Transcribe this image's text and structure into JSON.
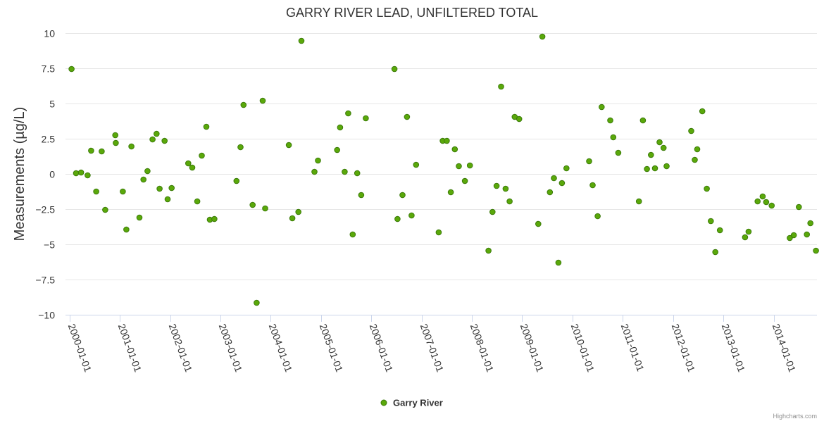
{
  "chart_data": {
    "type": "scatter",
    "title": "GARRY RIVER LEAD, UNFILTERED TOTAL",
    "xlabel": "",
    "ylabel": "Measurements (µg/L)",
    "ylim": [
      -10,
      10
    ],
    "yticks": [
      {
        "value": 10,
        "label": "10"
      },
      {
        "value": 7.5,
        "label": "7.5"
      },
      {
        "value": 5,
        "label": "5"
      },
      {
        "value": 2.5,
        "label": "2.5"
      },
      {
        "value": 0,
        "label": "0"
      },
      {
        "value": -2.5,
        "label": "−2.5"
      },
      {
        "value": -5,
        "label": "−5"
      },
      {
        "value": -7.5,
        "label": "−7.5"
      },
      {
        "value": -10,
        "label": "−10"
      }
    ],
    "xlim": [
      -0.08,
      14.86
    ],
    "xticks": [
      {
        "value": 0,
        "label": "2000-01-01"
      },
      {
        "value": 1,
        "label": "2001-01-01"
      },
      {
        "value": 2,
        "label": "2002-01-01"
      },
      {
        "value": 3,
        "label": "2003-01-01"
      },
      {
        "value": 4,
        "label": "2004-01-01"
      },
      {
        "value": 5,
        "label": "2005-01-01"
      },
      {
        "value": 6,
        "label": "2006-01-01"
      },
      {
        "value": 7,
        "label": "2007-01-01"
      },
      {
        "value": 8,
        "label": "2008-01-01"
      },
      {
        "value": 9,
        "label": "2009-01-01"
      },
      {
        "value": 10,
        "label": "2010-01-01"
      },
      {
        "value": 11,
        "label": "2011-01-01"
      },
      {
        "value": 12,
        "label": "2012-01-01"
      },
      {
        "value": 13,
        "label": "2013-01-01"
      },
      {
        "value": 14,
        "label": "2014-01-01"
      }
    ],
    "x_units": "years since 2000-01-01",
    "legend": {
      "position": "bottom-center"
    },
    "credits": "Highcharts.com",
    "colors": {
      "marker_fill": "#5aa80a",
      "marker_stroke": "#3b7a0a",
      "grid": "#e6e6e6",
      "axis": "#ccd6eb"
    },
    "series": [
      {
        "name": "Garry River",
        "x": [
          0.04,
          0.13,
          0.23,
          0.36,
          0.43,
          0.53,
          0.64,
          0.71,
          0.91,
          0.92,
          1.06,
          1.13,
          1.23,
          1.39,
          1.47,
          1.55,
          1.65,
          1.73,
          1.79,
          1.89,
          1.95,
          2.03,
          2.36,
          2.44,
          2.54,
          2.63,
          2.72,
          2.79,
          2.88,
          3.32,
          3.4,
          3.46,
          3.64,
          3.72,
          3.84,
          3.89,
          4.36,
          4.43,
          4.55,
          4.61,
          4.87,
          4.94,
          5.32,
          5.38,
          5.47,
          5.54,
          5.63,
          5.72,
          5.8,
          5.89,
          6.46,
          6.52,
          6.62,
          6.71,
          6.8,
          6.89,
          7.34,
          7.42,
          7.5,
          7.58,
          7.66,
          7.74,
          7.86,
          7.96,
          8.33,
          8.41,
          8.49,
          8.58,
          8.67,
          8.75,
          8.85,
          8.94,
          9.32,
          9.4,
          9.55,
          9.63,
          9.72,
          9.79,
          9.88,
          10.33,
          10.4,
          10.5,
          10.58,
          10.75,
          10.81,
          10.91,
          11.32,
          11.4,
          11.48,
          11.56,
          11.64,
          11.73,
          11.81,
          11.87,
          12.36,
          12.43,
          12.48,
          12.58,
          12.67,
          12.75,
          12.84,
          12.93,
          13.43,
          13.5,
          13.68,
          13.78,
          13.85,
          13.96,
          14.32,
          14.4,
          14.5,
          14.66,
          14.73,
          14.84
        ],
        "y": [
          7.45,
          0.05,
          0.1,
          -0.1,
          1.65,
          -1.25,
          1.6,
          -2.55,
          2.75,
          2.2,
          -1.25,
          -3.95,
          1.95,
          -3.1,
          -0.4,
          0.2,
          2.45,
          2.85,
          -1.05,
          2.35,
          -1.8,
          -1.0,
          0.75,
          0.45,
          -1.95,
          1.3,
          3.35,
          -3.25,
          -3.2,
          -0.5,
          1.9,
          4.9,
          -2.2,
          -9.15,
          5.2,
          -2.45,
          2.05,
          -3.15,
          -2.7,
          9.45,
          0.15,
          0.95,
          1.7,
          3.3,
          0.15,
          4.3,
          -4.3,
          0.05,
          -1.5,
          3.95,
          7.45,
          -3.2,
          -1.5,
          4.05,
          -2.95,
          0.65,
          -4.15,
          2.35,
          2.35,
          -1.3,
          1.75,
          0.55,
          -0.5,
          0.6,
          -5.45,
          -2.7,
          -0.85,
          6.2,
          -1.05,
          -1.95,
          4.05,
          3.9,
          -3.55,
          9.75,
          -1.3,
          -0.3,
          -6.3,
          -0.65,
          0.4,
          0.9,
          -0.8,
          -3.0,
          4.75,
          3.8,
          2.6,
          1.5,
          -1.95,
          3.8,
          0.35,
          1.35,
          0.4,
          2.25,
          1.85,
          0.55,
          3.05,
          1.0,
          1.75,
          4.45,
          -1.05,
          -3.35,
          -5.55,
          -4.0,
          -4.5,
          -4.1,
          -1.95,
          -1.6,
          -2.0,
          -2.25,
          -4.55,
          -4.35,
          -2.35,
          -4.3,
          -3.5,
          -5.45
        ]
      }
    ]
  }
}
